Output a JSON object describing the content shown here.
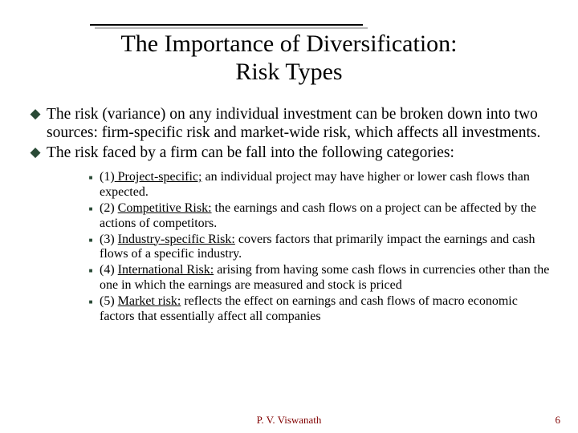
{
  "title": {
    "line1": "The Importance of Diversification:",
    "line2": "Risk Types",
    "fontsize": 30,
    "rule_color": "#000000",
    "rule_shadow_color": "#b8b8b8"
  },
  "bullets": {
    "main_marker": "◆",
    "main_marker_color": "#2a4a36",
    "items": [
      "The risk (variance) on any individual investment can be broken down into two sources: firm-specific risk and market-wide risk, which affects all investments.",
      "The risk faced by a firm can be fall into the following categories:"
    ]
  },
  "sub": {
    "marker": "■",
    "marker_color": "#2a4a36",
    "items": [
      {
        "lead": "(1)",
        "head": "  Project-specific;",
        "rest": " an individual project may have higher or lower cash flows than expected."
      },
      {
        "lead": "(2) ",
        "head": "Competitive Risk:",
        "rest": " the earnings and cash flows on a project can be affected by the actions of competitors."
      },
      {
        "lead": "(3) ",
        "head": "Industry-specific Risk:",
        "rest": " covers factors that primarily impact the earnings and cash flows of a specific industry."
      },
      {
        "lead": "(4)  ",
        "head": "International Risk:",
        "rest": " arising from having some cash flows in currencies other than the one in which the earnings are measured and stock is priced"
      },
      {
        "lead": "(5) ",
        "head": "Market risk:",
        "rest": " reflects the effect on earnings and  cash flows of macro economic factors that essentially affect all companies"
      }
    ]
  },
  "footer": {
    "author": "P. V. Viswanath",
    "page": "6",
    "color": "#800000"
  },
  "colors": {
    "background": "#ffffff",
    "text": "#000000"
  }
}
